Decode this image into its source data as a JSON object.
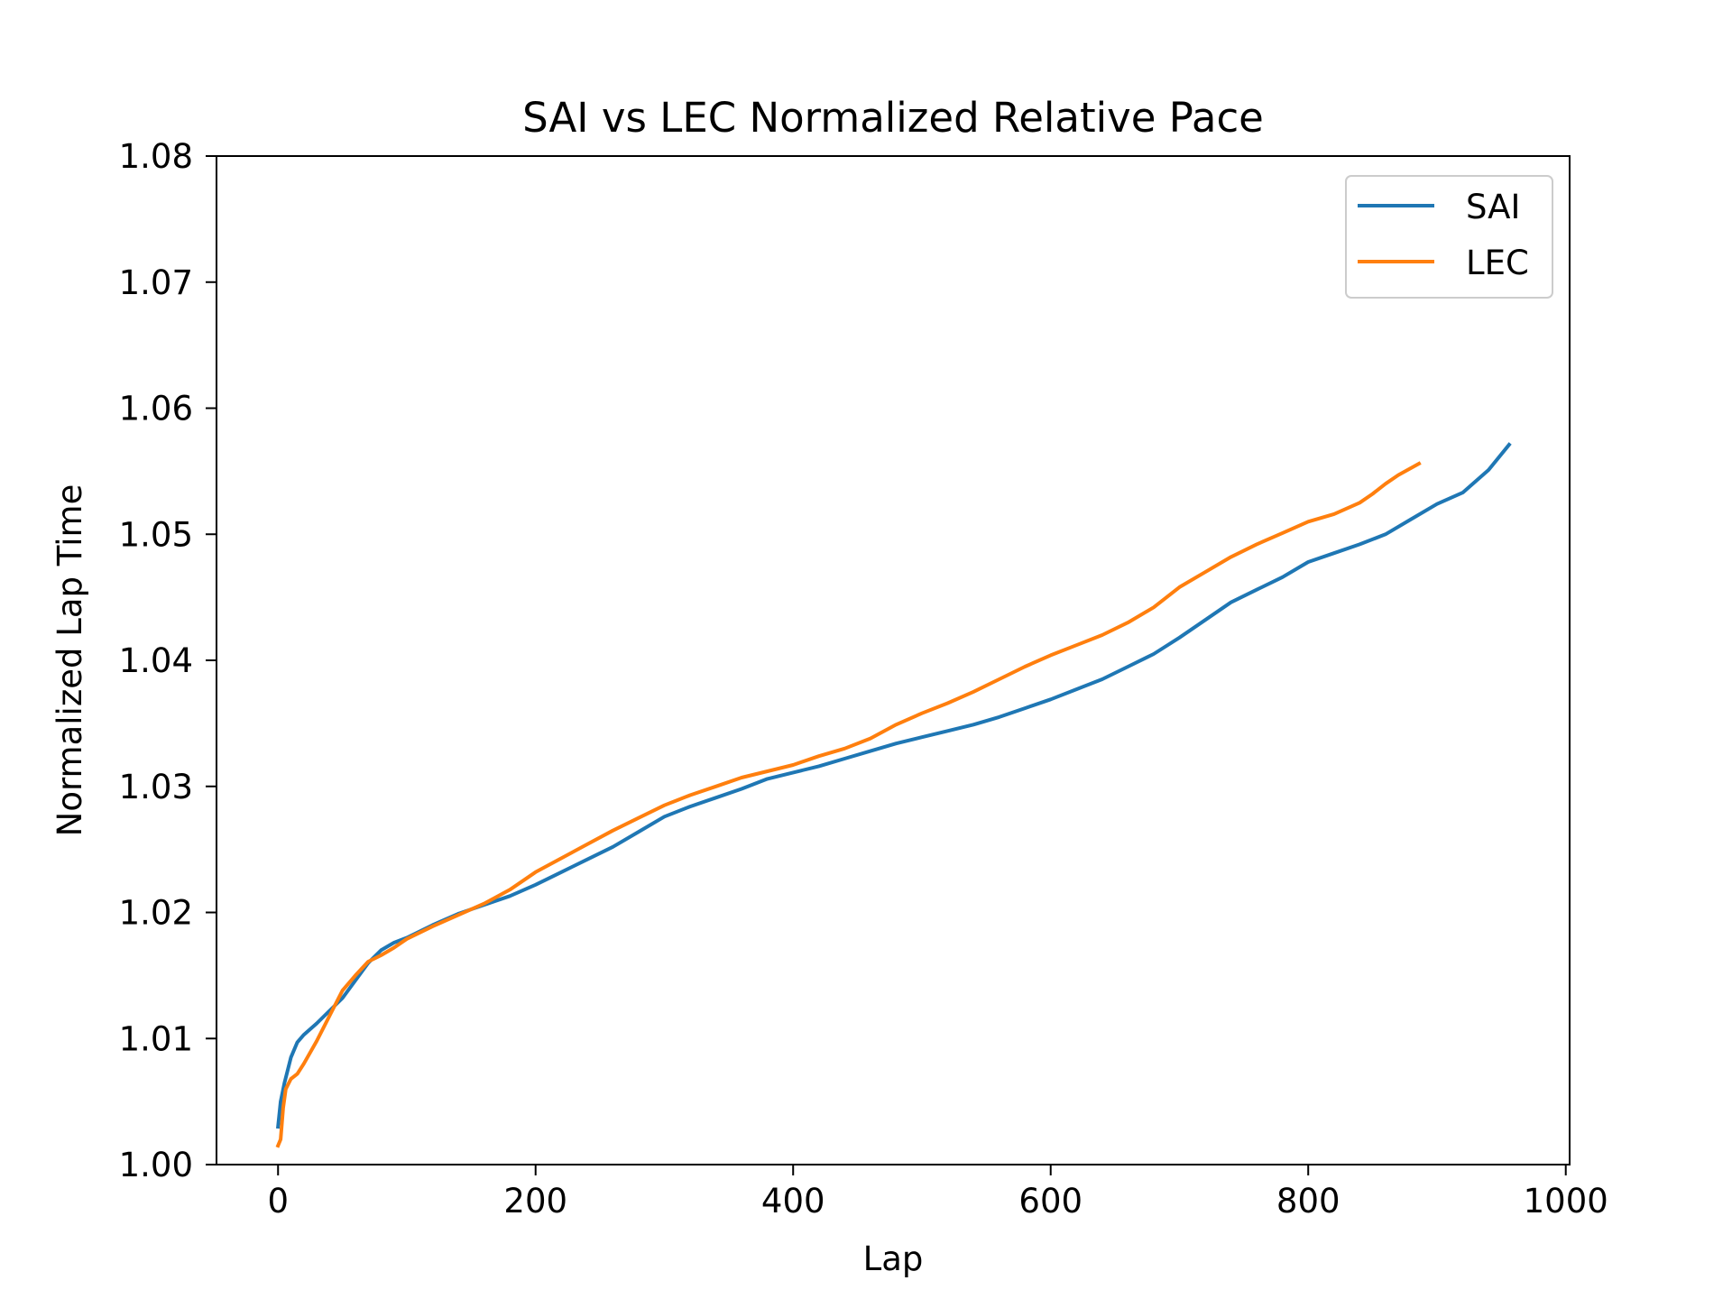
{
  "chart_data": {
    "type": "line",
    "title": "SAI vs LEC Normalized Relative Pace",
    "xlabel": "Lap",
    "ylabel": "Normalized Lap Time",
    "xlim": [
      -47.8,
      1003
    ],
    "ylim": [
      1.0,
      1.08
    ],
    "xticks": [
      0,
      200,
      400,
      600,
      800,
      1000
    ],
    "yticks": [
      1.0,
      1.01,
      1.02,
      1.03,
      1.04,
      1.05,
      1.06,
      1.07,
      1.08
    ],
    "xtick_labels": [
      "0",
      "200",
      "400",
      "600",
      "800",
      "1000"
    ],
    "ytick_labels": [
      "1.00",
      "1.01",
      "1.02",
      "1.03",
      "1.04",
      "1.05",
      "1.06",
      "1.07",
      "1.08"
    ],
    "grid": false,
    "legend_position": "top-right",
    "series": [
      {
        "name": "SAI",
        "color": "#1f77b4",
        "x": [
          0,
          2,
          5,
          10,
          15,
          20,
          30,
          40,
          50,
          60,
          70,
          80,
          90,
          100,
          120,
          140,
          160,
          180,
          200,
          220,
          240,
          260,
          280,
          300,
          320,
          340,
          360,
          380,
          400,
          420,
          440,
          460,
          480,
          500,
          520,
          540,
          560,
          580,
          600,
          620,
          640,
          660,
          680,
          700,
          720,
          740,
          760,
          780,
          800,
          820,
          840,
          860,
          880,
          900,
          920,
          940,
          956
        ],
        "y": [
          1.003,
          1.005,
          1.0065,
          1.0085,
          1.0097,
          1.0103,
          1.0112,
          1.0122,
          1.0132,
          1.0146,
          1.016,
          1.017,
          1.0176,
          1.018,
          1.019,
          1.0199,
          1.0206,
          1.0213,
          1.0222,
          1.0232,
          1.0242,
          1.0252,
          1.0264,
          1.0276,
          1.0284,
          1.0291,
          1.0298,
          1.0306,
          1.0311,
          1.0316,
          1.0322,
          1.0328,
          1.0334,
          1.0339,
          1.0344,
          1.0349,
          1.0355,
          1.0362,
          1.0369,
          1.0377,
          1.0385,
          1.0395,
          1.0405,
          1.0418,
          1.0432,
          1.0446,
          1.0456,
          1.0466,
          1.0478,
          1.0485,
          1.0492,
          1.05,
          1.0512,
          1.0524,
          1.0533,
          1.0551,
          1.0571
        ]
      },
      {
        "name": "LEC",
        "color": "#ff7f0e",
        "x": [
          0,
          2,
          4,
          6,
          10,
          15,
          20,
          30,
          40,
          50,
          60,
          70,
          80,
          90,
          100,
          120,
          140,
          160,
          180,
          200,
          220,
          240,
          260,
          280,
          300,
          320,
          340,
          360,
          380,
          400,
          420,
          440,
          460,
          480,
          500,
          520,
          540,
          560,
          580,
          600,
          620,
          640,
          660,
          680,
          700,
          720,
          740,
          760,
          780,
          800,
          820,
          840,
          850,
          860,
          870,
          886
        ],
        "y": [
          1.0015,
          1.002,
          1.0045,
          1.006,
          1.0068,
          1.0072,
          1.008,
          1.0098,
          1.0118,
          1.0138,
          1.015,
          1.0161,
          1.0166,
          1.0172,
          1.0179,
          1.0189,
          1.0198,
          1.0207,
          1.0218,
          1.0232,
          1.0243,
          1.0254,
          1.0265,
          1.0275,
          1.0285,
          1.0293,
          1.03,
          1.0307,
          1.0312,
          1.0317,
          1.0324,
          1.033,
          1.0338,
          1.0349,
          1.0358,
          1.0366,
          1.0375,
          1.0385,
          1.0395,
          1.0404,
          1.0412,
          1.042,
          1.043,
          1.0442,
          1.0458,
          1.047,
          1.0482,
          1.0492,
          1.0501,
          1.051,
          1.0516,
          1.0525,
          1.0532,
          1.054,
          1.0547,
          1.0556
        ]
      }
    ]
  }
}
